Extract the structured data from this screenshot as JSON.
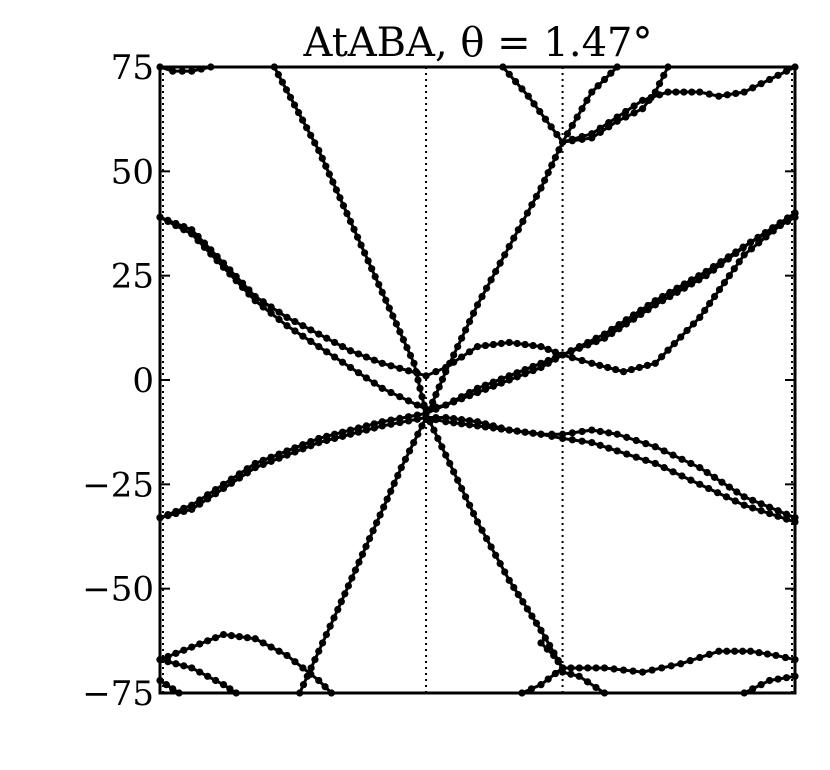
{
  "chart_data": {
    "type": "line",
    "title": "AtABA, θ = 1.47°",
    "xlabel": "",
    "ylabel": "",
    "ylim": [
      -75,
      75
    ],
    "xlim": [
      0,
      1
    ],
    "yticks": [
      75,
      50,
      25,
      0,
      -25,
      -50,
      -75
    ],
    "ytick_labels": [
      "75",
      "50",
      "25",
      "0",
      "−25",
      "−50",
      "−75"
    ],
    "k_path_lines": [
      0.419,
      0.634
    ],
    "grid": false,
    "legend": "none",
    "colors": {
      "bands": "#000000",
      "axes": "#000000",
      "background": "#ffffff"
    },
    "series": [
      {
        "points": [
          [
            0.0,
            39
          ],
          [
            0.05,
            36
          ],
          [
            0.1,
            28
          ],
          [
            0.15,
            20
          ],
          [
            0.2,
            15
          ],
          [
            0.25,
            11
          ],
          [
            0.3,
            7
          ],
          [
            0.35,
            4
          ],
          [
            0.419,
            1
          ],
          [
            0.45,
            3
          ],
          [
            0.5,
            8
          ],
          [
            0.55,
            9
          ],
          [
            0.6,
            8
          ],
          [
            0.634,
            6
          ],
          [
            0.68,
            4
          ],
          [
            0.73,
            2
          ],
          [
            0.78,
            4
          ],
          [
            0.85,
            15
          ],
          [
            0.92,
            30
          ],
          [
            1.0,
            40
          ]
        ]
      },
      {
        "points": [
          [
            0.0,
            39
          ],
          [
            0.05,
            35
          ],
          [
            0.1,
            27
          ],
          [
            0.15,
            19
          ],
          [
            0.2,
            13
          ],
          [
            0.25,
            8
          ],
          [
            0.3,
            3
          ],
          [
            0.35,
            -2
          ],
          [
            0.419,
            -7
          ],
          [
            0.45,
            -6
          ],
          [
            0.5,
            -3
          ],
          [
            0.55,
            0
          ],
          [
            0.6,
            3
          ],
          [
            0.634,
            6
          ],
          [
            0.7,
            11
          ],
          [
            0.78,
            19
          ],
          [
            0.86,
            26
          ],
          [
            0.93,
            33
          ],
          [
            1.0,
            39
          ]
        ]
      },
      {
        "points": [
          [
            0.0,
            -33
          ],
          [
            0.05,
            -30
          ],
          [
            0.1,
            -25
          ],
          [
            0.15,
            -20
          ],
          [
            0.2,
            -17
          ],
          [
            0.25,
            -14
          ],
          [
            0.3,
            -12
          ],
          [
            0.35,
            -10
          ],
          [
            0.419,
            -8
          ],
          [
            0.45,
            -6
          ],
          [
            0.5,
            -2
          ],
          [
            0.55,
            1
          ],
          [
            0.6,
            4
          ],
          [
            0.634,
            6
          ],
          [
            0.7,
            10
          ],
          [
            0.78,
            18
          ],
          [
            0.86,
            25
          ],
          [
            0.93,
            33
          ],
          [
            1.0,
            40
          ]
        ]
      },
      {
        "points": [
          [
            0.0,
            -33
          ],
          [
            0.05,
            -31
          ],
          [
            0.1,
            -26
          ],
          [
            0.15,
            -21
          ],
          [
            0.2,
            -18
          ],
          [
            0.25,
            -15
          ],
          [
            0.3,
            -13
          ],
          [
            0.35,
            -11
          ],
          [
            0.419,
            -9
          ],
          [
            0.45,
            -10
          ],
          [
            0.5,
            -11
          ],
          [
            0.55,
            -12
          ],
          [
            0.6,
            -13
          ],
          [
            0.634,
            -13
          ],
          [
            0.68,
            -12
          ],
          [
            0.72,
            -13
          ],
          [
            0.78,
            -16
          ],
          [
            0.85,
            -21
          ],
          [
            0.92,
            -28
          ],
          [
            1.0,
            -33
          ]
        ]
      },
      {
        "points": [
          [
            0.419,
            -9
          ],
          [
            0.45,
            -9
          ],
          [
            0.5,
            -10
          ],
          [
            0.55,
            -12
          ],
          [
            0.6,
            -13
          ],
          [
            0.634,
            -14
          ],
          [
            0.68,
            -15
          ],
          [
            0.72,
            -17
          ],
          [
            0.78,
            -20
          ],
          [
            0.85,
            -25
          ],
          [
            0.92,
            -30
          ],
          [
            1.0,
            -34
          ]
        ]
      },
      {
        "points": [
          [
            0.0,
            -67
          ],
          [
            0.05,
            -64
          ],
          [
            0.1,
            -61
          ],
          [
            0.15,
            -62
          ],
          [
            0.2,
            -66
          ],
          [
            0.25,
            -72
          ],
          [
            0.27,
            -75
          ]
        ]
      },
      {
        "points": [
          [
            0.0,
            -72
          ],
          [
            0.03,
            -75
          ]
        ]
      },
      {
        "points": [
          [
            0.0,
            -67
          ],
          [
            0.05,
            -69
          ],
          [
            0.1,
            -73
          ],
          [
            0.12,
            -75
          ]
        ]
      },
      {
        "points": [
          [
            0.634,
            -69
          ],
          [
            0.7,
            -69
          ],
          [
            0.76,
            -70
          ],
          [
            0.82,
            -68
          ],
          [
            0.88,
            -65
          ],
          [
            0.93,
            -65
          ],
          [
            0.97,
            -66
          ],
          [
            1.0,
            -67
          ]
        ]
      },
      {
        "points": [
          [
            0.634,
            -70
          ],
          [
            0.66,
            -71
          ],
          [
            0.7,
            -75
          ]
        ]
      },
      {
        "points": [
          [
            0.92,
            -75
          ],
          [
            0.96,
            -72
          ],
          [
            1.0,
            -71
          ]
        ]
      },
      {
        "points": [
          [
            0.0,
            75
          ],
          [
            0.02,
            74
          ],
          [
            0.05,
            74
          ],
          [
            0.08,
            75
          ]
        ]
      },
      {
        "points": [
          [
            0.634,
            57
          ],
          [
            0.68,
            59
          ],
          [
            0.72,
            63
          ],
          [
            0.76,
            67
          ],
          [
            0.8,
            69
          ],
          [
            0.85,
            69
          ],
          [
            0.88,
            68
          ],
          [
            0.92,
            69
          ],
          [
            0.96,
            72
          ],
          [
            1.0,
            75
          ]
        ]
      },
      {
        "points": [
          [
            0.634,
            57
          ],
          [
            0.68,
            58
          ],
          [
            0.72,
            62
          ],
          [
            0.76,
            65
          ],
          [
            0.78,
            69
          ],
          [
            0.8,
            75
          ]
        ]
      },
      {
        "points": [
          [
            0.18,
            75
          ],
          [
            0.25,
            55
          ],
          [
            0.3,
            38
          ],
          [
            0.35,
            21
          ],
          [
            0.4,
            4
          ],
          [
            0.419,
            -8
          ],
          [
            0.45,
            -18
          ],
          [
            0.5,
            -34
          ],
          [
            0.55,
            -48
          ],
          [
            0.6,
            -60
          ],
          [
            0.634,
            -69
          ]
        ]
      },
      {
        "points": [
          [
            0.22,
            -75
          ],
          [
            0.28,
            -55
          ],
          [
            0.33,
            -38
          ],
          [
            0.38,
            -21
          ],
          [
            0.419,
            -9
          ],
          [
            0.45,
            2
          ],
          [
            0.5,
            18
          ],
          [
            0.55,
            32
          ],
          [
            0.6,
            46
          ],
          [
            0.634,
            57
          ]
        ]
      },
      {
        "points": [
          [
            0.54,
            75
          ],
          [
            0.58,
            68
          ],
          [
            0.634,
            57
          ],
          [
            0.68,
            69
          ],
          [
            0.72,
            75
          ]
        ]
      },
      {
        "points": [
          [
            0.6,
            -63
          ],
          [
            0.62,
            -66
          ],
          [
            0.634,
            -69
          ],
          [
            0.6,
            -73
          ],
          [
            0.57,
            -75
          ]
        ]
      }
    ]
  }
}
